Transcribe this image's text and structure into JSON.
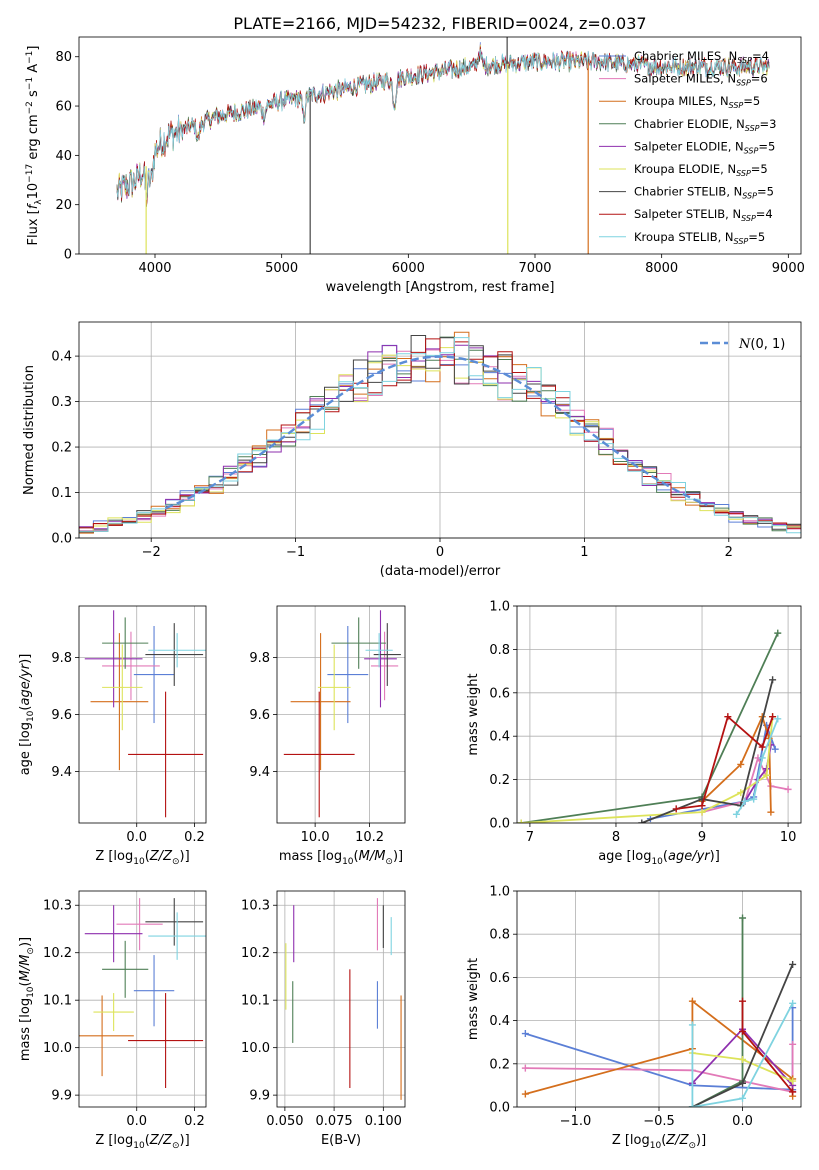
{
  "figure": {
    "title": "PLATE=2166, MJD=54232, FIBERID=0024, z=0.037"
  },
  "models": [
    {
      "name": "Chabrier MILES",
      "nssp": "4",
      "color": "#5b7fd6"
    },
    {
      "name": "Salpeter MILES",
      "nssp": "6",
      "color": "#e27ab8"
    },
    {
      "name": "Kroupa MILES",
      "nssp": "5",
      "color": "#d46e1c"
    },
    {
      "name": "Chabrier ELODIE",
      "nssp": "3",
      "color": "#4f7f56"
    },
    {
      "name": "Salpeter ELODIE",
      "nssp": "5",
      "color": "#8e2fae"
    },
    {
      "name": "Kroupa ELODIE",
      "nssp": "5",
      "color": "#dde35a"
    },
    {
      "name": "Chabrier STELIB",
      "nssp": "5",
      "color": "#444444"
    },
    {
      "name": "Salpeter STELIB",
      "nssp": "4",
      "color": "#b41212"
    },
    {
      "name": "Kroupa STELIB",
      "nssp": "5",
      "color": "#7fd3e0"
    }
  ],
  "chart_data": [
    {
      "id": "spectrum",
      "type": "line",
      "xlabel": "wavelength [Angstrom, rest frame]",
      "ylabel": "Flux [f_λ 10^-17 erg cm^-2 s^-1 A^-1]",
      "xlim": [
        3400,
        9100
      ],
      "ylim": [
        0,
        88
      ],
      "xticks": [
        4000,
        5000,
        6000,
        7000,
        8000,
        9000
      ],
      "yticks": [
        0,
        20,
        40,
        60,
        80
      ],
      "grid": false,
      "legend": "top-right",
      "wavelength_start": 3700,
      "wavelength_end": 8850,
      "continuum_anchors": [
        [
          3700,
          25
        ],
        [
          3850,
          30
        ],
        [
          3950,
          37
        ],
        [
          4000,
          42
        ],
        [
          4100,
          48
        ],
        [
          4300,
          52
        ],
        [
          4500,
          56
        ],
        [
          4700,
          58
        ],
        [
          5000,
          62
        ],
        [
          5500,
          67
        ],
        [
          6000,
          72
        ],
        [
          6500,
          76
        ],
        [
          7000,
          78
        ],
        [
          7500,
          78
        ],
        [
          8000,
          76
        ],
        [
          8500,
          76
        ],
        [
          8850,
          76
        ]
      ],
      "dips": [
        {
          "x": 5175,
          "depth": 8
        },
        {
          "x": 5890,
          "depth": 10
        },
        {
          "x": 4861,
          "depth": 4
        },
        {
          "x": 4340,
          "depth": 6
        },
        {
          "x": 3934,
          "depth": 12
        },
        {
          "x": 3969,
          "depth": 10
        },
        {
          "x": 6563,
          "depth": -6
        }
      ],
      "spikes": [
        {
          "x": 3930,
          "ymin": 0,
          "model": 5
        },
        {
          "x": 5225,
          "ymin": 0,
          "model": 6
        },
        {
          "x": 6785,
          "ymin": 0,
          "model": 5
        },
        {
          "x": 6780,
          "ymin": 90,
          "model": 6
        },
        {
          "x": 7420,
          "ymin": 0,
          "model": 2
        }
      ]
    },
    {
      "id": "residuals",
      "type": "histogram",
      "xlabel": "(data-model)/error",
      "ylabel": "Normed distribution",
      "xlim": [
        -2.5,
        2.5
      ],
      "ylim": [
        0,
        0.475
      ],
      "xticks": [
        -2,
        -1,
        0,
        1,
        2
      ],
      "yticks": [
        0,
        0.1,
        0.2,
        0.3,
        0.4
      ],
      "grid": true,
      "bin_width": 0.1,
      "gaussian_label": "N(0,1)",
      "legend": "top-right"
    },
    {
      "id": "age-vs-Z",
      "type": "errorbar",
      "xlabel": "Z [log10(Z/Z_sun)]",
      "ylabel": "age [log10(age/yr)]",
      "xlim": [
        -0.2,
        0.24
      ],
      "ylim": [
        9.22,
        9.98
      ],
      "xticks": [
        0.0,
        0.2
      ],
      "yticks": [
        9.4,
        9.6,
        9.8
      ],
      "grid": true,
      "points": [
        {
          "model": 0,
          "x": 0.06,
          "xerr": 0.07,
          "y": 9.74,
          "yerr": 0.17
        },
        {
          "model": 1,
          "x": -0.02,
          "xerr": 0.1,
          "y": 9.77,
          "yerr": 0.12
        },
        {
          "model": 2,
          "x": -0.06,
          "xerr": 0.1,
          "y": 9.645,
          "yerr": 0.24
        },
        {
          "model": 3,
          "x": -0.04,
          "xerr": 0.08,
          "y": 9.85,
          "yerr": 0.09
        },
        {
          "model": 4,
          "x": -0.08,
          "xerr": 0.1,
          "y": 9.795,
          "yerr": 0.17
        },
        {
          "model": 5,
          "x": -0.05,
          "xerr": 0.07,
          "y": 9.695,
          "yerr": 0.15
        },
        {
          "model": 6,
          "x": 0.13,
          "xerr": 0.1,
          "y": 9.81,
          "yerr": 0.11
        },
        {
          "model": 7,
          "x": 0.1,
          "xerr": 0.13,
          "y": 9.46,
          "yerr": 0.22
        },
        {
          "model": 8,
          "x": 0.14,
          "xerr": 0.1,
          "y": 9.825,
          "yerr": 0.06
        }
      ]
    },
    {
      "id": "age-vs-mass",
      "type": "errorbar",
      "xlabel": "mass [log10(M/M_sun)]",
      "ylabel": "",
      "xlim": [
        9.86,
        10.33
      ],
      "ylim": [
        9.22,
        9.98
      ],
      "xticks": [
        10.0,
        10.2
      ],
      "yticks": [
        9.4,
        9.6,
        9.8
      ],
      "grid": true,
      "points": [
        {
          "model": 0,
          "x": 10.12,
          "xerr": 0.075,
          "y": 9.74,
          "yerr": 0.17
        },
        {
          "model": 1,
          "x": 10.255,
          "xerr": 0.05,
          "y": 9.77,
          "yerr": 0.12
        },
        {
          "model": 2,
          "x": 10.02,
          "xerr": 0.11,
          "y": 9.645,
          "yerr": 0.24
        },
        {
          "model": 3,
          "x": 10.16,
          "xerr": 0.1,
          "y": 9.85,
          "yerr": 0.09
        },
        {
          "model": 4,
          "x": 10.24,
          "xerr": 0.06,
          "y": 9.795,
          "yerr": 0.17
        },
        {
          "model": 5,
          "x": 10.07,
          "xerr": 0.06,
          "y": 9.695,
          "yerr": 0.15
        },
        {
          "model": 6,
          "x": 10.265,
          "xerr": 0.05,
          "y": 9.81,
          "yerr": 0.11
        },
        {
          "model": 7,
          "x": 10.015,
          "xerr": 0.13,
          "y": 9.46,
          "yerr": 0.22
        },
        {
          "model": 8,
          "x": 10.235,
          "xerr": 0.05,
          "y": 9.825,
          "yerr": 0.06
        }
      ]
    },
    {
      "id": "weight-vs-age",
      "type": "line",
      "xlabel": "age [log10(age/yr)]",
      "ylabel": "mass weight",
      "xlim": [
        6.85,
        10.15
      ],
      "ylim": [
        0,
        1
      ],
      "xticks": [
        7,
        8,
        9,
        10
      ],
      "yticks": [
        0.0,
        0.2,
        0.4,
        0.6,
        0.8,
        1.0
      ],
      "grid": true,
      "series": [
        {
          "model": 0,
          "x": [
            8.4,
            9.5,
            9.6,
            9.75,
            9.85
          ],
          "y": [
            0.02,
            0.1,
            0.12,
            0.45,
            0.34
          ]
        },
        {
          "model": 1,
          "x": [
            9.0,
            9.5,
            9.65,
            9.8,
            10.0
          ],
          "y": [
            0.05,
            0.1,
            0.3,
            0.17,
            0.155
          ]
        },
        {
          "model": 2,
          "x": [
            9.0,
            9.45,
            9.7,
            9.78,
            9.8
          ],
          "y": [
            0.1,
            0.27,
            0.49,
            0.39,
            0.05
          ]
        },
        {
          "model": 3,
          "x": [
            6.9,
            9.0,
            9.88
          ],
          "y": [
            0.0,
            0.12,
            0.875
          ]
        },
        {
          "model": 4,
          "x": [
            9.5,
            9.65,
            9.75,
            9.8
          ],
          "y": [
            0.1,
            0.2,
            0.25,
            0.36
          ]
        },
        {
          "model": 5,
          "x": [
            6.9,
            9.0,
            9.45,
            9.75,
            9.82
          ],
          "y": [
            0.0,
            0.05,
            0.14,
            0.22,
            0.49
          ]
        },
        {
          "model": 6,
          "x": [
            8.3,
            9.0,
            9.45,
            9.82
          ],
          "y": [
            0.0,
            0.11,
            0.08,
            0.66
          ]
        },
        {
          "model": 7,
          "x": [
            8.7,
            9.0,
            9.3,
            9.7,
            9.82
          ],
          "y": [
            0.065,
            0.08,
            0.49,
            0.35,
            0.49
          ]
        },
        {
          "model": 8,
          "x": [
            9.4,
            9.5,
            9.6,
            9.7,
            9.88
          ],
          "y": [
            0.04,
            0.1,
            0.11,
            0.3,
            0.48
          ]
        }
      ]
    },
    {
      "id": "mass-vs-Z",
      "type": "errorbar",
      "xlabel": "Z [log10(Z/Z_sun)]",
      "ylabel": "mass [log10(M/M_sun)]",
      "xlim": [
        -0.2,
        0.24
      ],
      "ylim": [
        9.875,
        10.33
      ],
      "xticks": [
        0.0,
        0.2
      ],
      "yticks": [
        9.9,
        10.0,
        10.1,
        10.2,
        10.3
      ],
      "grid": true,
      "points": [
        {
          "model": 0,
          "x": 0.06,
          "xerr": 0.07,
          "y": 10.12,
          "yerr": 0.075
        },
        {
          "model": 1,
          "x": 0.01,
          "xerr": 0.08,
          "y": 10.26,
          "yerr": 0.055
        },
        {
          "model": 2,
          "x": -0.12,
          "xerr": 0.11,
          "y": 10.025,
          "yerr": 0.085
        },
        {
          "model": 3,
          "x": -0.04,
          "xerr": 0.08,
          "y": 10.165,
          "yerr": 0.06
        },
        {
          "model": 4,
          "x": -0.08,
          "xerr": 0.1,
          "y": 10.24,
          "yerr": 0.06
        },
        {
          "model": 5,
          "x": -0.08,
          "xerr": 0.07,
          "y": 10.075,
          "yerr": 0.04
        },
        {
          "model": 6,
          "x": 0.13,
          "xerr": 0.1,
          "y": 10.265,
          "yerr": 0.05
        },
        {
          "model": 7,
          "x": 0.1,
          "xerr": 0.13,
          "y": 10.015,
          "yerr": 0.1
        },
        {
          "model": 8,
          "x": 0.14,
          "xerr": 0.1,
          "y": 10.235,
          "yerr": 0.05
        }
      ]
    },
    {
      "id": "mass-vs-ebv",
      "type": "errorbar",
      "xlabel": "E(B-V)",
      "ylabel": "",
      "xlim": [
        0.046,
        0.111
      ],
      "ylim": [
        9.875,
        10.33
      ],
      "xticks": [
        0.05,
        0.075,
        0.1
      ],
      "xticklabels": [
        "0.050",
        "0.075",
        "0.100"
      ],
      "yticks": [
        9.9,
        10.0,
        10.1,
        10.2,
        10.3
      ],
      "grid": true,
      "points": [
        {
          "model": 0,
          "x": 0.097,
          "xerr": 0,
          "y": 10.09,
          "yerr": 0.05
        },
        {
          "model": 1,
          "x": 0.097,
          "xerr": 0,
          "y": 10.26,
          "yerr": 0.055
        },
        {
          "model": 2,
          "x": 0.109,
          "xerr": 0,
          "y": 10.0,
          "yerr": 0.11
        },
        {
          "model": 3,
          "x": 0.054,
          "xerr": 0,
          "y": 10.075,
          "yerr": 0.065
        },
        {
          "model": 4,
          "x": 0.0545,
          "xerr": 0,
          "y": 10.24,
          "yerr": 0.06
        },
        {
          "model": 5,
          "x": 0.0505,
          "xerr": 0,
          "y": 10.15,
          "yerr": 0.07
        },
        {
          "model": 6,
          "x": 0.1,
          "xerr": 0,
          "y": 10.255,
          "yerr": 0.045
        },
        {
          "model": 7,
          "x": 0.083,
          "xerr": 0,
          "y": 10.04,
          "yerr": 0.125
        },
        {
          "model": 8,
          "x": 0.104,
          "xerr": 0,
          "y": 10.235,
          "yerr": 0.04
        }
      ]
    },
    {
      "id": "weight-vs-Z",
      "type": "line",
      "xlabel": "Z [log10(Z/Z_sun)]",
      "ylabel": "mass weight",
      "xlim": [
        -1.35,
        0.35
      ],
      "ylim": [
        0,
        1
      ],
      "xticks": [
        -1.0,
        -0.5,
        0.0
      ],
      "xticklabels": [
        "−1.0",
        "−0.5",
        "0.0"
      ],
      "yticks": [
        0.0,
        0.2,
        0.4,
        0.6,
        0.8,
        1.0
      ],
      "grid": true,
      "series": [
        {
          "model": 0,
          "x": [
            -1.3,
            -0.3,
            0.3,
            0.3
          ],
          "y": [
            0.34,
            0.1,
            0.08,
            0.46
          ]
        },
        {
          "model": 1,
          "x": [
            -1.3,
            -0.3,
            0.3,
            0.3
          ],
          "y": [
            0.18,
            0.17,
            0.07,
            0.29
          ]
        },
        {
          "model": 2,
          "x": [
            -1.3,
            -0.3,
            -0.3,
            0.3,
            0.3
          ],
          "y": [
            0.06,
            0.27,
            0.49,
            0.13,
            0.05
          ]
        },
        {
          "model": 3,
          "x": [
            -0.3,
            0.0,
            0.0
          ],
          "y": [
            0.0,
            0.12,
            0.875
          ]
        },
        {
          "model": 4,
          "x": [
            -0.3,
            0.0,
            0.3
          ],
          "y": [
            0.11,
            0.36,
            0.1
          ]
        },
        {
          "model": 5,
          "x": [
            -0.3,
            0.0,
            0.3
          ],
          "y": [
            0.25,
            0.22,
            0.12
          ]
        },
        {
          "model": 6,
          "x": [
            -0.3,
            0.0,
            0.3
          ],
          "y": [
            0.0,
            0.11,
            0.66
          ]
        },
        {
          "model": 7,
          "x": [
            0.0,
            0.0,
            0.3
          ],
          "y": [
            0.49,
            0.35,
            0.07
          ]
        },
        {
          "model": 8,
          "x": [
            -0.3,
            -0.3,
            0.0,
            0.3
          ],
          "y": [
            0.38,
            0.0,
            0.04,
            0.48
          ]
        }
      ]
    }
  ]
}
